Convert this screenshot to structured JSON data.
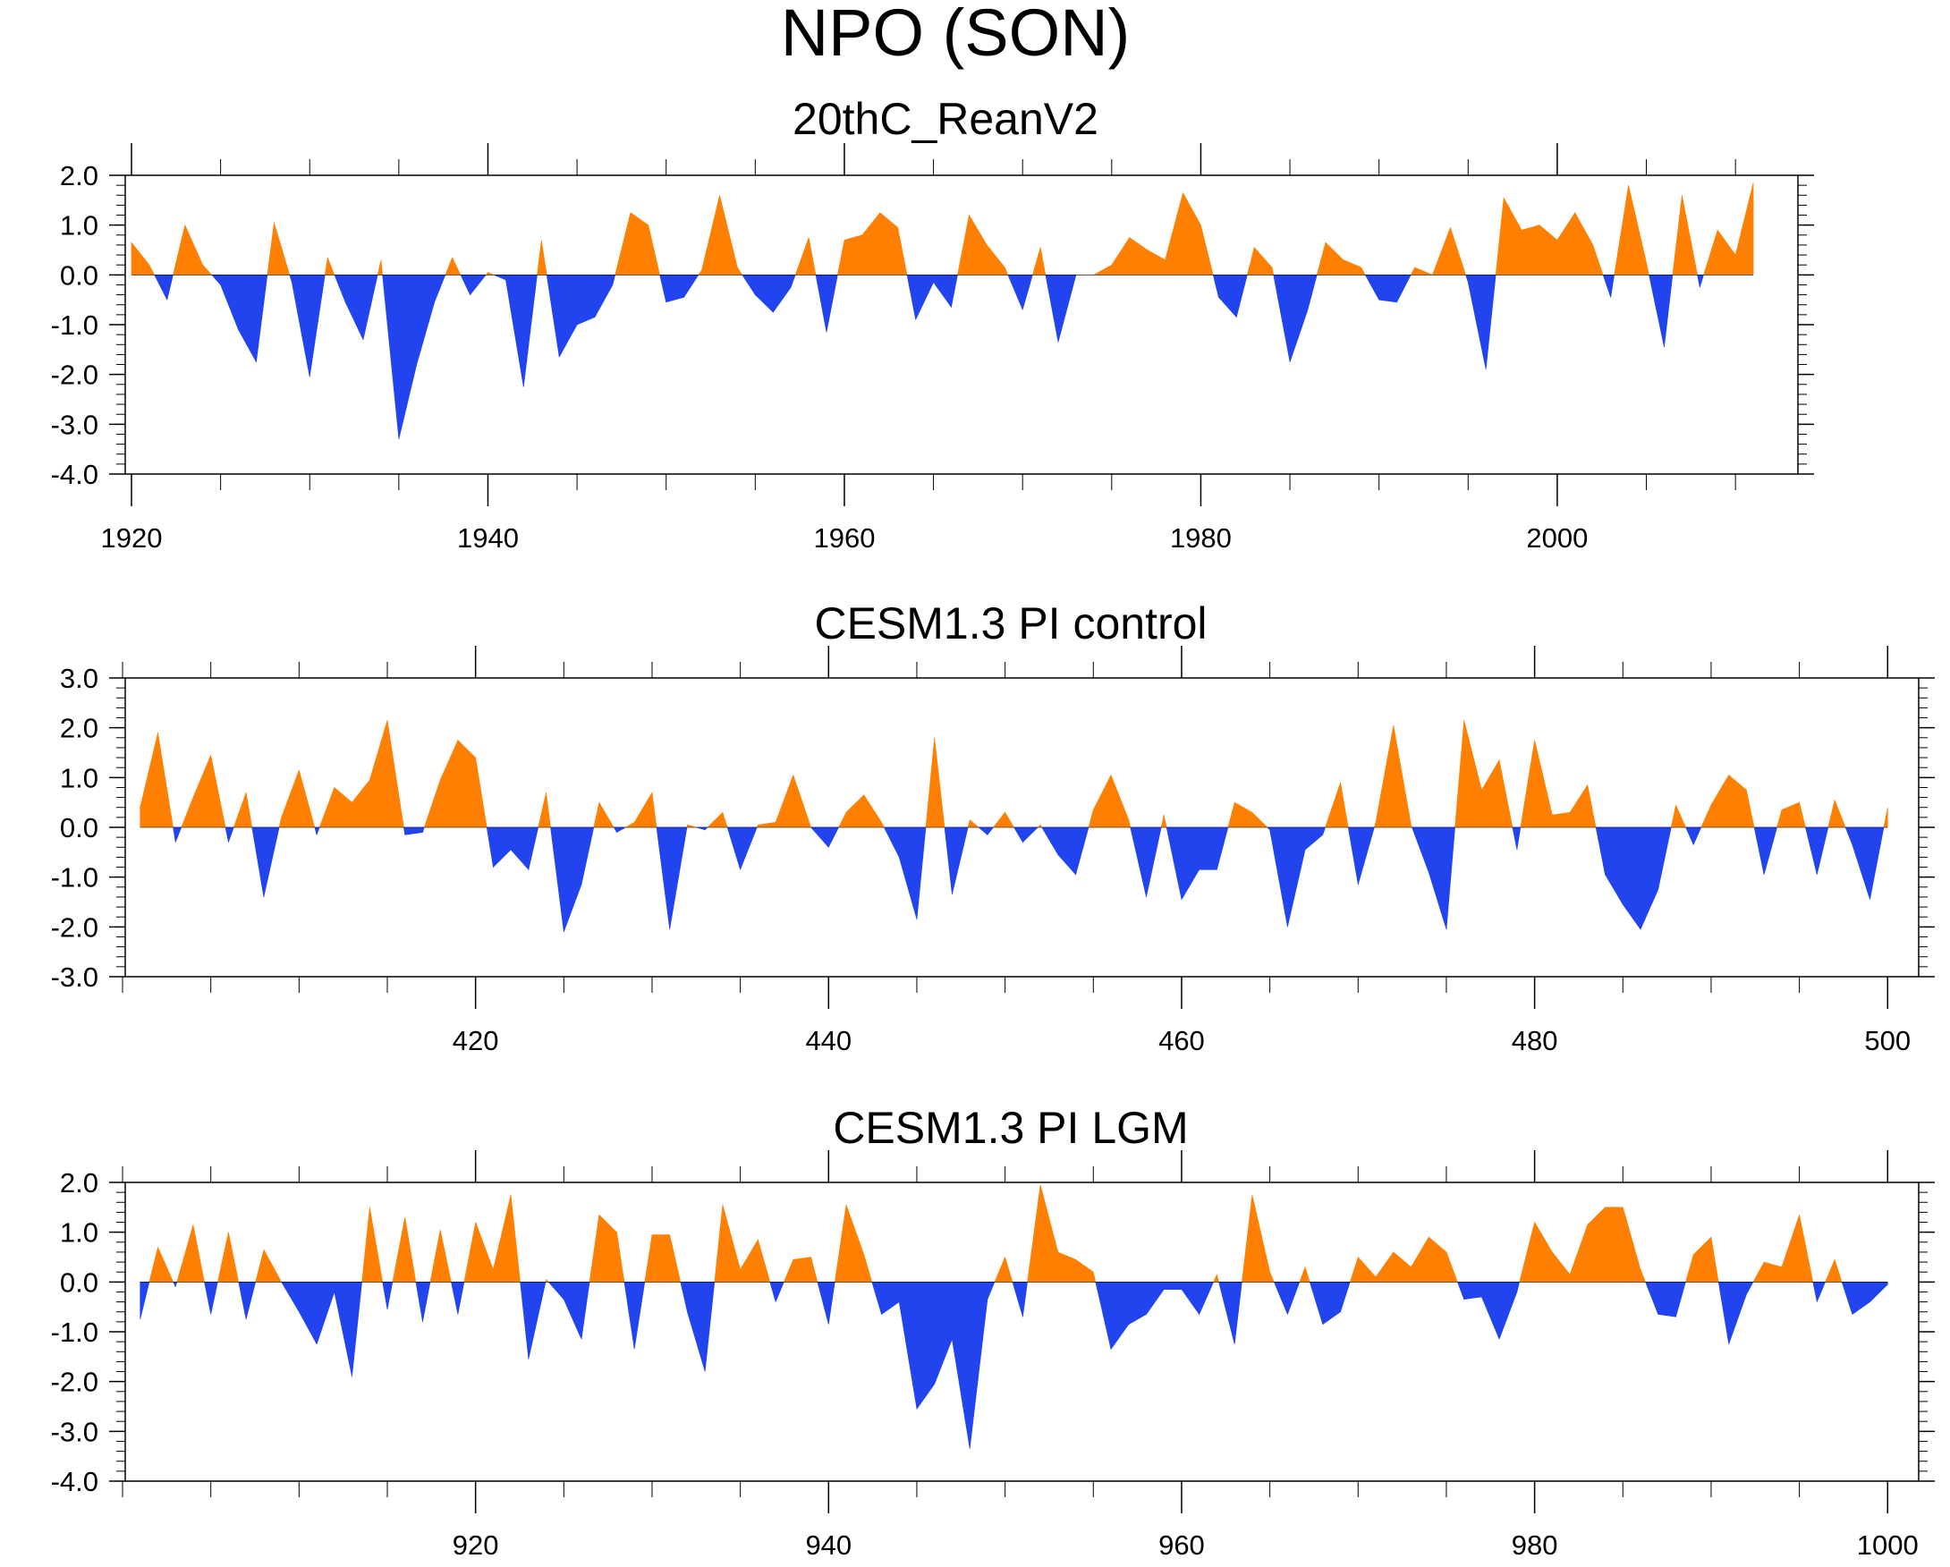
{
  "main_title": "NPO (SON)",
  "colors": {
    "positive": "#FF8000",
    "negative": "#2244EE",
    "axis": "#000000"
  },
  "chart_data": [
    {
      "type": "area",
      "title": "20thC_ReanV2",
      "x_start": 1920,
      "x_step": 1,
      "xlim": [
        1920,
        2012
      ],
      "ylim": [
        -4,
        2
      ],
      "yticks": [
        2,
        1,
        0,
        -1,
        -2,
        -3,
        -4
      ],
      "ytick_labels": [
        "2.0",
        "1.0",
        "0.0",
        "-1.0",
        "-2.0",
        "-3.0",
        "-4.0"
      ],
      "xticks": [
        1920,
        1940,
        1960,
        1980,
        2000
      ],
      "xtick_labels": [
        "1920",
        "1940",
        "1960",
        "1980",
        "2000"
      ],
      "values": [
        0.65,
        0.2,
        -0.5,
        1.0,
        0.2,
        -0.2,
        -1.1,
        -1.75,
        1.05,
        -0.15,
        -2.05,
        0.35,
        -0.55,
        -1.3,
        0.3,
        -3.3,
        -1.8,
        -0.55,
        0.35,
        -0.4,
        0.05,
        -0.1,
        -2.25,
        0.7,
        -1.65,
        -1.0,
        -0.85,
        -0.2,
        1.25,
        1.0,
        -0.55,
        -0.45,
        0.1,
        1.6,
        0.15,
        -0.4,
        -0.75,
        -0.25,
        0.75,
        -1.15,
        0.7,
        0.8,
        1.25,
        0.95,
        -0.9,
        -0.15,
        -0.65,
        1.2,
        0.6,
        0.15,
        -0.7,
        0.55,
        -1.35,
        0.0,
        0.0,
        0.2,
        0.75,
        0.5,
        0.3,
        1.65,
        1.0,
        -0.45,
        -0.85,
        0.55,
        0.15,
        -1.75,
        -0.7,
        0.65,
        0.3,
        0.15,
        -0.5,
        -0.55,
        0.15,
        0.0,
        0.95,
        -0.15,
        -1.9,
        1.55,
        0.9,
        1.0,
        0.7,
        1.25,
        0.6,
        -0.45,
        1.8,
        0.25,
        -1.45,
        1.6,
        -0.25,
        0.9,
        0.4,
        1.85
      ]
    },
    {
      "type": "area",
      "title": "CESM1.3 PI control",
      "x_start": 401,
      "x_step": 1,
      "xlim": [
        400,
        501
      ],
      "ylim": [
        -3,
        3
      ],
      "yticks": [
        3,
        2,
        1,
        0,
        -1,
        -2,
        -3
      ],
      "ytick_labels": [
        "3.0",
        "2.0",
        "1.0",
        "0.0",
        "-1.0",
        "-2.0",
        "-3.0"
      ],
      "xticks": [
        420,
        440,
        460,
        480,
        500
      ],
      "xtick_labels": [
        "420",
        "440",
        "460",
        "480",
        "500"
      ],
      "values": [
        0.4,
        1.9,
        -0.3,
        0.6,
        1.45,
        -0.3,
        0.7,
        -1.4,
        0.2,
        1.15,
        -0.15,
        0.8,
        0.5,
        0.95,
        2.15,
        -0.15,
        -0.1,
        0.95,
        1.75,
        1.4,
        -0.8,
        -0.45,
        -0.85,
        0.7,
        -2.1,
        -1.15,
        0.5,
        -0.1,
        0.1,
        0.7,
        -2.05,
        0.05,
        -0.05,
        0.3,
        -0.85,
        0.05,
        0.1,
        1.05,
        0.0,
        -0.4,
        0.3,
        0.65,
        0.1,
        -0.6,
        -1.85,
        1.8,
        -1.35,
        0.15,
        -0.15,
        0.3,
        -0.3,
        0.05,
        -0.55,
        -0.95,
        0.35,
        1.05,
        0.15,
        -1.4,
        0.25,
        -1.45,
        -0.85,
        -0.85,
        0.5,
        0.3,
        -0.05,
        -2.0,
        -0.45,
        -0.15,
        0.9,
        -1.15,
        0.1,
        2.05,
        0.05,
        -0.9,
        -2.05,
        2.15,
        0.75,
        1.35,
        -0.45,
        1.75,
        0.25,
        0.3,
        0.85,
        -0.95,
        -1.55,
        -2.05,
        -1.25,
        0.45,
        -0.35,
        0.45,
        1.05,
        0.75,
        -0.95,
        0.35,
        0.5,
        -0.95,
        0.55,
        -0.35,
        -1.45,
        0.4
      ]
    },
    {
      "type": "area",
      "title": "CESM1.3 PI LGM",
      "x_start": 901,
      "x_step": 1,
      "xlim": [
        900,
        1001
      ],
      "ylim": [
        -4,
        2
      ],
      "yticks": [
        2,
        1,
        0,
        -1,
        -2,
        -3,
        -4
      ],
      "ytick_labels": [
        "2.0",
        "1.0",
        "0.0",
        "-1.0",
        "-2.0",
        "-3.0",
        "-4.0"
      ],
      "xticks": [
        920,
        940,
        960,
        980,
        1000
      ],
      "xtick_labels": [
        "920",
        "940",
        "960",
        "980",
        "1000"
      ],
      "values": [
        -0.75,
        0.7,
        -0.1,
        1.15,
        -0.65,
        1.0,
        -0.75,
        0.65,
        0.0,
        -0.6,
        -1.25,
        -0.2,
        -1.9,
        1.5,
        -0.55,
        1.3,
        -0.8,
        1.05,
        -0.65,
        1.2,
        0.25,
        1.75,
        -1.55,
        0.05,
        -0.35,
        -1.15,
        1.35,
        1.0,
        -1.35,
        0.95,
        0.95,
        -0.6,
        -1.8,
        1.55,
        0.25,
        0.85,
        -0.4,
        0.45,
        0.5,
        -0.85,
        1.55,
        0.55,
        -0.65,
        -0.4,
        -2.55,
        -2.05,
        -1.15,
        -3.35,
        -0.35,
        0.5,
        -0.7,
        1.95,
        0.6,
        0.45,
        0.2,
        -1.35,
        -0.85,
        -0.65,
        -0.15,
        -0.15,
        -0.65,
        0.15,
        -1.25,
        1.75,
        0.2,
        -0.65,
        0.3,
        -0.85,
        -0.6,
        0.5,
        0.1,
        0.6,
        0.3,
        0.9,
        0.6,
        -0.35,
        -0.3,
        -1.15,
        -0.2,
        1.2,
        0.6,
        0.15,
        1.15,
        1.5,
        1.5,
        0.25,
        -0.65,
        -0.7,
        0.55,
        0.9,
        -1.25,
        -0.25,
        0.4,
        0.3,
        1.35,
        -0.4,
        0.45,
        -0.65,
        -0.4,
        -0.05
      ]
    }
  ]
}
